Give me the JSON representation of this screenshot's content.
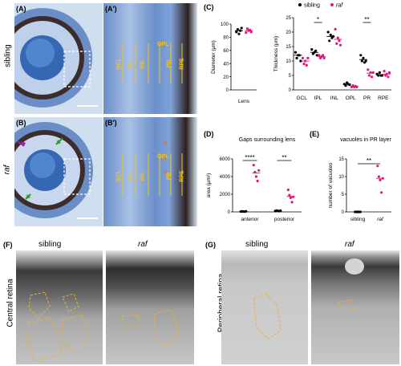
{
  "panels": {
    "A": "(A)",
    "A_prime": "(A′)",
    "B": "(B)",
    "B_prime": "(B′)",
    "C": "(C)",
    "D": "(D)",
    "E": "(E)",
    "F": "(F)",
    "G": "(G)"
  },
  "row_labels": {
    "sibling": "sibling",
    "raf": "raf"
  },
  "layer_labels_top": [
    "GCL",
    "IPL",
    "INL",
    "OPL",
    "PR",
    "RPE"
  ],
  "layer_labels_bottom": [
    "GCL",
    "IPL",
    "INL",
    "OPL",
    "PR",
    "RPE"
  ],
  "legend": {
    "sibling": "sibling",
    "raf": "raf"
  },
  "colors": {
    "sibling": "#000000",
    "raf": "#e0187a",
    "blue_stain": "#3a6db0",
    "gap_outline": "#e8b040"
  },
  "chart_data": [
    {
      "id": "C-left",
      "type": "scatter",
      "ylabel": "Diameter (μm)",
      "categories": [
        "Lens"
      ],
      "ylim": [
        0,
        100
      ],
      "yticks": [
        0,
        20,
        40,
        60,
        80,
        100
      ],
      "series": [
        {
          "name": "sibling",
          "values": [
            [
              88,
              92,
              85,
              90,
              94
            ]
          ],
          "mean": [
            90
          ]
        },
        {
          "name": "raf",
          "values": [
            [
              87,
              93,
              90,
              91,
              88
            ]
          ],
          "mean": [
            90
          ]
        }
      ]
    },
    {
      "id": "C-right",
      "type": "scatter",
      "ylabel": "Thickness (μm)",
      "categories": [
        "GCL",
        "IPL",
        "INL",
        "OPL",
        "PR",
        "RPE"
      ],
      "ylim": [
        0,
        25
      ],
      "yticks": [
        0,
        5,
        10,
        15,
        20,
        25
      ],
      "significance": [
        {
          "category": "IPL",
          "label": "*"
        },
        {
          "category": "PR",
          "label": "**"
        }
      ],
      "series": [
        {
          "name": "sibling",
          "mean": [
            12,
            13,
            18.5,
            2,
            10.5,
            5.3
          ],
          "points": [
            [
              13,
              11,
              12,
              12,
              10
            ],
            [
              14,
              12.5,
              13,
              13.5,
              12
            ],
            [
              20,
              17,
              19,
              18,
              18.5
            ],
            [
              2,
              1.5,
              2.5,
              2,
              1.8
            ],
            [
              12,
              10,
              11,
              9.5,
              10
            ],
            [
              5.5,
              5,
              6,
              5,
              5
            ]
          ]
        },
        {
          "name": "raf",
          "mean": [
            10,
            11.5,
            17.5,
            1.2,
            5.8,
            5.5
          ],
          "points": [
            [
              11,
              9,
              10,
              8.5,
              11
            ],
            [
              12,
              11,
              11.5,
              12,
              11
            ],
            [
              21,
              16,
              18,
              17,
              15.5
            ],
            [
              1,
              1.5,
              1,
              1.3,
              1
            ],
            [
              7,
              5,
              6,
              4.5,
              6
            ],
            [
              6.5,
              5,
              5.5,
              4.5,
              6
            ]
          ]
        }
      ]
    },
    {
      "id": "D",
      "type": "scatter",
      "title": "Gaps surrounding lens",
      "ylabel": "area (μm²)",
      "categories": [
        "anterior",
        "posterior"
      ],
      "ylim": [
        0,
        6000
      ],
      "yticks": [
        0,
        2000,
        4000,
        6000
      ],
      "significance": [
        {
          "category": "anterior",
          "label": "****"
        },
        {
          "category": "posterior",
          "label": "**"
        }
      ],
      "series": [
        {
          "name": "sibling",
          "mean": [
            50,
            120
          ],
          "points": [
            [
              40,
              60,
              50,
              30,
              70
            ],
            [
              100,
              150,
              120,
              90,
              140
            ]
          ]
        },
        {
          "name": "raf",
          "mean": [
            4400,
            1750
          ],
          "points": [
            [
              5300,
              4500,
              4000,
              3500,
              4700
            ],
            [
              2500,
              1900,
              1600,
              1100,
              1700
            ]
          ]
        }
      ]
    },
    {
      "id": "E",
      "type": "scatter",
      "title": "vacuoles in PR layer",
      "ylabel": "number of vacuoles",
      "categories": [
        "sibling",
        "raf"
      ],
      "ylim": [
        0,
        15
      ],
      "yticks": [
        0,
        5,
        10,
        15
      ],
      "significance": [
        {
          "label": "**"
        }
      ],
      "series": [
        {
          "name": "sibling",
          "mean": [
            0
          ],
          "points": [
            [
              0,
              0,
              0,
              0,
              0
            ]
          ]
        },
        {
          "name": "raf",
          "mean": [
            9.5
          ],
          "points": [
            [
              13,
              10,
              9,
              5.5,
              9.5
            ]
          ]
        }
      ]
    }
  ],
  "F": {
    "col1": "sibling",
    "col2": "raf",
    "side": "Central retina"
  },
  "G": {
    "col1": "sibling",
    "col2": "raf",
    "side": "Peripheral retina"
  }
}
